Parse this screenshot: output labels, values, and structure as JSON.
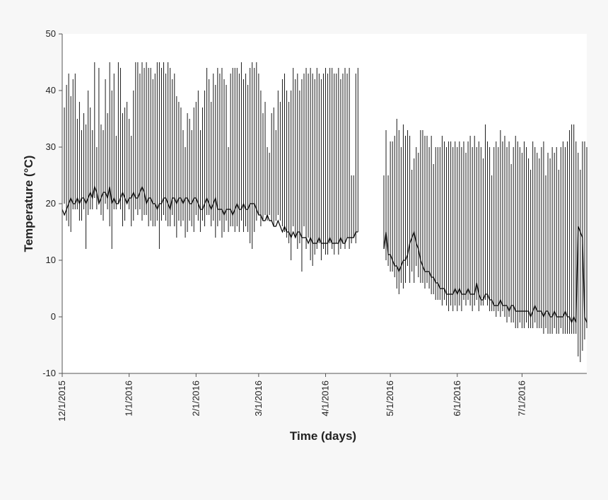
{
  "chart_data": {
    "type": "range-bars",
    "title": "",
    "xlabel": "Time (days)",
    "ylabel": "Temperature (°C)",
    "ylim": [
      -10,
      50
    ],
    "yticks": [
      -10,
      0,
      10,
      20,
      30,
      40,
      50
    ],
    "xlim": [
      "2015-12-01",
      "2016-07-31"
    ],
    "xticks": [
      {
        "date": "2015-12-01",
        "label": "12/1/2015"
      },
      {
        "date": "2016-01-01",
        "label": "1/1/2016"
      },
      {
        "date": "2016-02-01",
        "label": "2/1/2016"
      },
      {
        "date": "2016-03-01",
        "label": "3/1/2016"
      },
      {
        "date": "2016-04-01",
        "label": "4/1/2016"
      },
      {
        "date": "2016-05-01",
        "label": "5/1/2016"
      },
      {
        "date": "2016-06-01",
        "label": "6/1/2016"
      },
      {
        "date": "2016-07-01",
        "label": "7/1/2016"
      }
    ],
    "grid": false,
    "legend": "none",
    "gap": [
      "2016-04-17",
      "2016-04-28"
    ],
    "series": [
      {
        "period": [
          "2015-12-01",
          "2016-04-16"
        ],
        "max": [
          45,
          37,
          41,
          43,
          39,
          42,
          43,
          35,
          38,
          33,
          36,
          34,
          40,
          37,
          33,
          45,
          30,
          44,
          34,
          33,
          42,
          36,
          45,
          40,
          43,
          32,
          45,
          44,
          36,
          37,
          38,
          35,
          32,
          40,
          45,
          45,
          43,
          45,
          44,
          45,
          44,
          44,
          42,
          43,
          45,
          45,
          44,
          45,
          43,
          45,
          44,
          42,
          43,
          39,
          38,
          37,
          33,
          30,
          36,
          35,
          33,
          37,
          38,
          40,
          33,
          37,
          40,
          44,
          42,
          38,
          43,
          41,
          44,
          43,
          44,
          42,
          41,
          30,
          43,
          44,
          44,
          44,
          43,
          45,
          42,
          43,
          41,
          44,
          45,
          44,
          45,
          43,
          40,
          36,
          38,
          30,
          29,
          36,
          37,
          33,
          40,
          38,
          42,
          43,
          40,
          38,
          40,
          44,
          42,
          43,
          40,
          42,
          43,
          44,
          43,
          44,
          43,
          42,
          44,
          43,
          42,
          43,
          44,
          43,
          44,
          44,
          43,
          43,
          44,
          42,
          43,
          44,
          43,
          44,
          25,
          25,
          43,
          44
        ],
        "min": [
          15,
          20,
          17,
          16,
          15,
          19,
          19,
          19,
          17,
          17,
          19,
          12,
          18,
          19,
          19,
          21,
          19,
          20,
          18,
          17,
          20,
          19,
          16,
          12,
          19,
          19,
          20,
          19,
          16,
          17,
          20,
          19,
          16,
          17,
          19,
          18,
          19,
          17,
          18,
          18,
          16,
          17,
          16,
          16,
          17,
          12,
          17,
          18,
          17,
          16,
          16,
          18,
          16,
          14,
          17,
          16,
          17,
          14,
          15,
          17,
          16,
          15,
          18,
          17,
          15,
          17,
          16,
          18,
          18,
          16,
          17,
          14,
          16,
          17,
          14,
          15,
          17,
          15,
          16,
          16,
          15,
          16,
          15,
          17,
          15,
          16,
          15,
          13,
          12,
          15,
          17,
          18,
          16,
          17,
          18,
          17,
          18,
          17,
          16,
          17,
          18,
          17,
          16,
          15,
          14,
          13,
          10,
          16,
          14,
          12,
          13,
          8,
          16,
          12,
          14,
          10,
          9,
          11,
          12,
          13,
          10,
          12,
          11,
          11,
          13,
          12,
          11,
          13,
          11,
          12,
          13,
          12,
          14,
          12,
          13,
          14,
          13,
          15
        ],
        "mean": [
          19,
          18,
          19,
          20,
          21,
          20,
          20,
          21,
          20,
          21,
          21,
          20,
          21,
          22,
          21,
          23,
          22,
          20,
          21,
          22,
          22,
          21,
          23,
          20,
          21,
          20,
          20,
          21,
          22,
          21,
          20,
          21,
          21,
          22,
          21,
          21,
          22,
          23,
          22,
          20,
          21,
          21,
          20,
          20,
          19,
          20,
          20,
          21,
          21,
          20,
          19,
          21,
          21,
          20,
          21,
          21,
          20,
          21,
          21,
          20,
          20,
          21,
          21,
          20,
          19,
          19,
          20,
          21,
          20,
          19,
          20,
          21,
          19,
          19,
          19,
          18,
          19,
          19,
          19,
          18,
          19,
          20,
          19,
          19,
          20,
          19,
          19,
          20,
          20,
          20,
          19,
          18,
          18,
          17,
          17,
          18,
          17,
          17,
          16,
          16,
          17,
          16,
          15,
          16,
          15,
          15,
          14,
          15,
          14,
          15,
          15,
          14,
          14,
          14,
          13,
          14,
          13,
          13,
          13,
          14,
          13,
          13,
          13,
          13,
          14,
          13,
          13,
          13,
          13,
          14,
          13,
          13,
          14,
          14,
          14,
          14,
          15,
          15
        ]
      },
      {
        "period": [
          "2016-04-28",
          "2016-07-31"
        ],
        "max": [
          25,
          33,
          25,
          31,
          31,
          32,
          35,
          33,
          30,
          34,
          32,
          33,
          32,
          26,
          28,
          30,
          29,
          33,
          33,
          32,
          32,
          30,
          32,
          27,
          30,
          30,
          30,
          32,
          31,
          30,
          31,
          31,
          30,
          31,
          30,
          31,
          30,
          31,
          29,
          31,
          32,
          30,
          32,
          30,
          31,
          30,
          28,
          34,
          31,
          30,
          25,
          30,
          31,
          30,
          33,
          31,
          32,
          30,
          31,
          27,
          30,
          32,
          31,
          30,
          29,
          31,
          30,
          28,
          26,
          31,
          30,
          29,
          28,
          30,
          31,
          25,
          29,
          28,
          30,
          29,
          30,
          26,
          30,
          31,
          30,
          31,
          33,
          34,
          34,
          31,
          29,
          26,
          31,
          31,
          30
        ],
        "min": [
          12,
          10,
          9,
          8,
          8,
          7,
          5,
          4,
          6,
          5,
          6,
          9,
          6,
          8,
          6,
          9,
          7,
          6,
          6,
          5,
          6,
          5,
          4,
          4,
          3,
          3,
          3,
          2,
          3,
          2,
          1,
          2,
          1,
          2,
          1,
          2,
          1,
          3,
          2,
          3,
          2,
          1,
          2,
          3,
          1,
          2,
          2,
          3,
          2,
          1,
          1,
          1,
          0,
          1,
          0,
          1,
          0,
          -1,
          0,
          -1,
          -1,
          -2,
          -2,
          -1,
          -2,
          -2,
          -1,
          -2,
          -2,
          -2,
          -1,
          -2,
          -2,
          -2,
          -3,
          -2,
          -3,
          -3,
          -3,
          -2,
          -3,
          -3,
          -2,
          -3,
          -3,
          -3,
          -3,
          -3,
          -3,
          -3,
          -7,
          -8,
          -6,
          -4,
          -2
        ],
        "mean": [
          12,
          15,
          11,
          11,
          10,
          9,
          9,
          8,
          9,
          10,
          10,
          11,
          13,
          14,
          15,
          13,
          12,
          10,
          9,
          8,
          8,
          8,
          7,
          7,
          6,
          6,
          5,
          5,
          5,
          4,
          4,
          4,
          4,
          5,
          4,
          5,
          4,
          4,
          4,
          5,
          4,
          4,
          4,
          6,
          4,
          3,
          3,
          4,
          4,
          3,
          3,
          2,
          2,
          2,
          3,
          2,
          2,
          2,
          1,
          2,
          2,
          1,
          1,
          1,
          1,
          1,
          1,
          1,
          0,
          1,
          2,
          1,
          1,
          1,
          0,
          1,
          1,
          0,
          0,
          1,
          0,
          0,
          0,
          0,
          1,
          0,
          0,
          -1,
          0,
          -1,
          16,
          15,
          14,
          0,
          -1
        ]
      }
    ]
  }
}
